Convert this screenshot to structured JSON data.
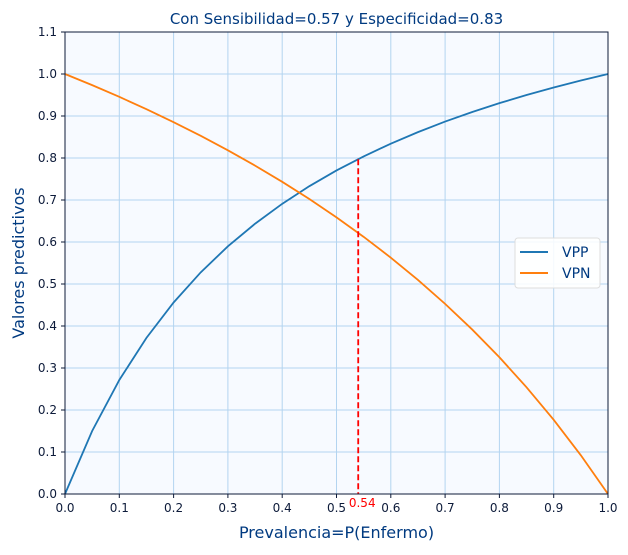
{
  "chart_data": {
    "type": "line",
    "title": "Con Sensibilidad=0.57 y Especificidad=0.83",
    "xlabel": "Prevalencia=P(Enfermo)",
    "ylabel": "Valores predictivos",
    "xlim": [
      0,
      1
    ],
    "ylim": [
      0,
      1.1
    ],
    "xticks": [
      "0.0",
      "0.1",
      "0.2",
      "0.3",
      "0.4",
      "0.5",
      "0.6",
      "0.7",
      "0.8",
      "0.9",
      "1.0"
    ],
    "yticks": [
      "0.0",
      "0.1",
      "0.2",
      "0.3",
      "0.4",
      "0.5",
      "0.6",
      "0.7",
      "0.8",
      "0.9",
      "1.0",
      "1.1"
    ],
    "grid": true,
    "legend_position": "center-right",
    "x": [
      0,
      0.05,
      0.1,
      0.15,
      0.2,
      0.25,
      0.3,
      0.35,
      0.4,
      0.45,
      0.5,
      0.55,
      0.6,
      0.65,
      0.7,
      0.75,
      0.8,
      0.85,
      0.9,
      0.95,
      1
    ],
    "series": [
      {
        "name": "VPP",
        "color": "#1f77b4",
        "values": [
          0,
          0.15,
          0.2714,
          0.3717,
          0.456,
          0.5278,
          0.5897,
          0.6435,
          0.6909,
          0.7329,
          0.7703,
          0.8038,
          0.8341,
          0.8616,
          0.8867,
          0.9096,
          0.9306,
          0.95,
          0.9679,
          0.9845,
          1
        ]
      },
      {
        "name": "VPN",
        "color": "#ff7f0e",
        "values": [
          1,
          0.9735,
          0.9456,
          0.9162,
          0.8853,
          0.8527,
          0.8183,
          0.7819,
          0.7433,
          0.7023,
          0.6587,
          0.6123,
          0.5627,
          0.5096,
          0.4527,
          0.3915,
          0.3255,
          0.2541,
          0.1766,
          0.0922,
          0
        ]
      }
    ],
    "annotation": {
      "x": 0.54,
      "y": 0.797,
      "label": "0.54",
      "color": "#ff0000"
    }
  }
}
